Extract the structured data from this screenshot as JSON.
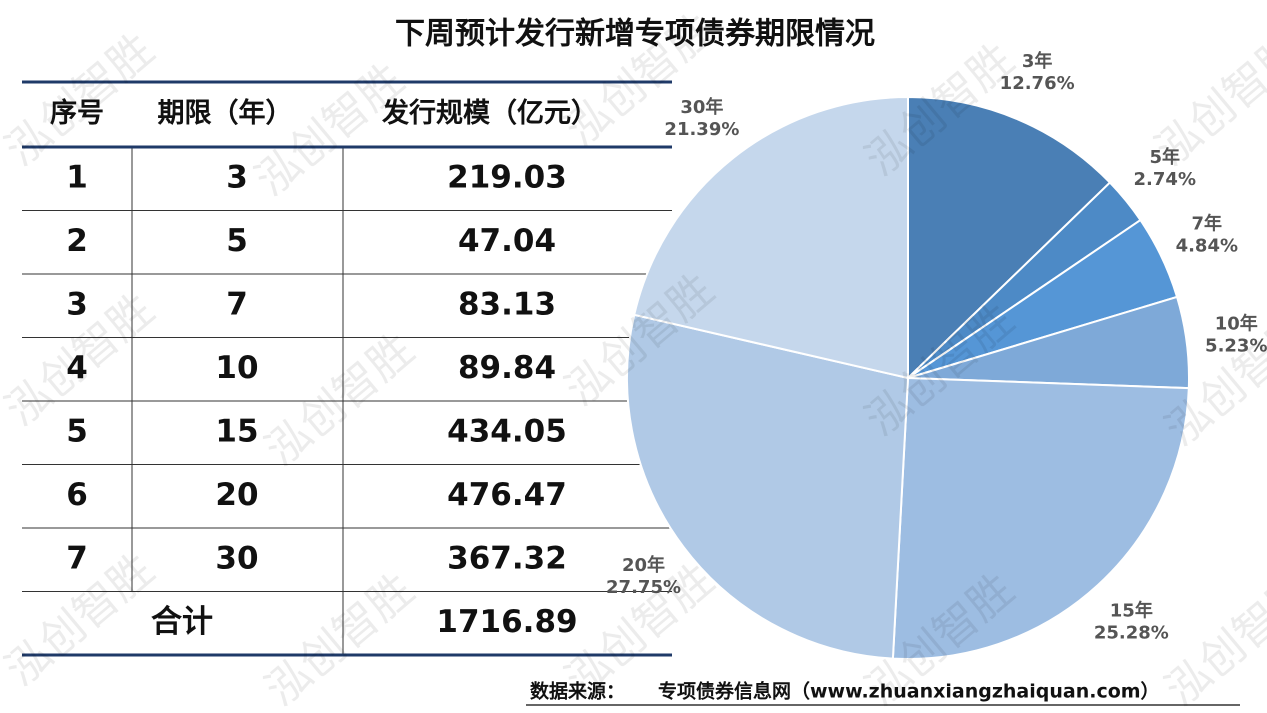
{
  "title": "下周预计发行新增专项债券期限情况",
  "watermark": "泓创智胜",
  "table": {
    "header": [
      "序号",
      "期限（年）",
      "发行规模（亿元）"
    ],
    "rows": [
      [
        "1",
        "3",
        "219.03"
      ],
      [
        "2",
        "5",
        "47.04"
      ],
      [
        "3",
        "7",
        "83.13"
      ],
      [
        "4",
        "10",
        "89.84"
      ],
      [
        "5",
        "15",
        "434.05"
      ],
      [
        "6",
        "20",
        "476.47"
      ],
      [
        "7",
        "30",
        "367.32"
      ]
    ],
    "total": [
      "合计",
      "1716.89"
    ]
  },
  "chart_data": {
    "type": "pie",
    "categories": [
      "3年",
      "5年",
      "7年",
      "10年",
      "15年",
      "20年",
      "30年"
    ],
    "values": [
      12.76,
      2.74,
      4.84,
      5.23,
      25.28,
      27.75,
      21.39
    ],
    "value_labels": [
      "12.76%",
      "2.74%",
      "4.84%",
      "5.23%",
      "25.28%",
      "27.75%",
      "21.39%"
    ],
    "colors": [
      "#4a7fb5",
      "#4d8ac6",
      "#5596d6",
      "#7ea9d8",
      "#9dbde2",
      "#b0c9e6",
      "#c5d7ec"
    ]
  },
  "source_label": "数据来源：",
  "source": "专项债券信息网（www.zhuanxiangzhaiquan.com）"
}
